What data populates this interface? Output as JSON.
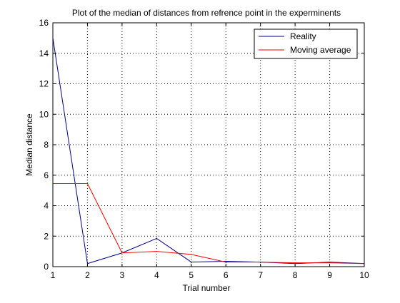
{
  "chart_data": {
    "type": "line",
    "title": "Plot of the median of distances from refrence point in the experminents",
    "xlabel": "Trial number",
    "ylabel": "Median distance",
    "xlim": [
      1,
      10
    ],
    "ylim": [
      0,
      16
    ],
    "xticks": [
      1,
      2,
      3,
      4,
      5,
      6,
      7,
      8,
      9,
      10
    ],
    "yticks": [
      0,
      2,
      4,
      6,
      8,
      10,
      12,
      14,
      16
    ],
    "grid": true,
    "grid_style": "dotted",
    "legend_position": "top-right",
    "series": [
      {
        "name": "Reality",
        "color": "#00008B",
        "x": [
          1,
          2,
          3,
          4,
          5,
          6,
          7,
          8,
          9,
          10
        ],
        "y": [
          15.0,
          0.2,
          0.9,
          1.85,
          0.3,
          0.35,
          0.3,
          0.2,
          0.3,
          0.2
        ]
      },
      {
        "name": "Moving average",
        "color": "#FF0000",
        "x": [
          1,
          2,
          3,
          4,
          5,
          6,
          7,
          8,
          9,
          10
        ],
        "y": [
          5.45,
          5.45,
          0.9,
          1.0,
          0.8,
          0.3,
          0.3,
          0.25,
          0.25,
          0.2
        ]
      }
    ]
  }
}
